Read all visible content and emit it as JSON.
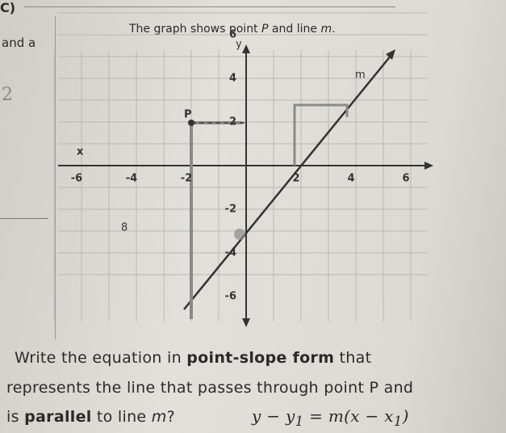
{
  "header": {
    "label": "C)",
    "title_parts": [
      "The graph shows point ",
      "P",
      " and line ",
      "m",
      "."
    ],
    "side_text": "and a"
  },
  "handwriting": {
    "margin_mark": "2",
    "scribble": "8"
  },
  "graph": {
    "axis_labels": {
      "x": "x",
      "y": "y"
    },
    "x_ticks": [
      "-6",
      "-4",
      "-2",
      "2",
      "4",
      "6"
    ],
    "y_ticks": [
      "6",
      "4",
      "2",
      "-2",
      "-4",
      "-6"
    ],
    "point_label": "P",
    "line_label": "m"
  },
  "question": {
    "line1": [
      "Write the equation in ",
      "point-slope form",
      " that"
    ],
    "line2": "represents the line that passes through point P and",
    "line3": [
      "is ",
      "parallel",
      " to line ",
      "m",
      "?"
    ],
    "formula": [
      "y − y",
      "1",
      " = m(x − x",
      "1",
      ")"
    ]
  }
}
